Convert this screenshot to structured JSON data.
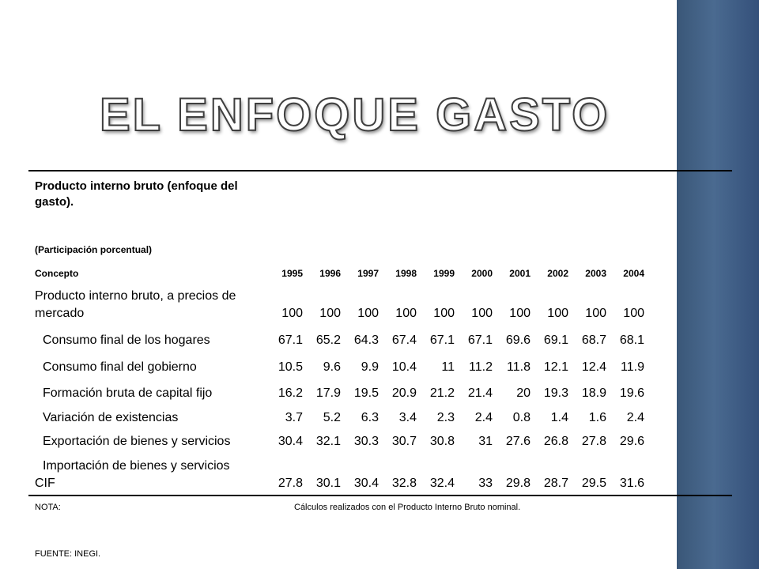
{
  "title": "El enfoque gasto",
  "table": {
    "heading": "Producto interno bruto (enfoque del gasto).",
    "heading_line1": "Producto interno bruto (enfoque del",
    "heading_line2": "gasto).",
    "subheading": "(Participación porcentual)",
    "concept_label": "Concepto",
    "years": [
      "1995",
      "1996",
      "1997",
      "1998",
      "1999",
      "2000",
      "2001",
      "2002",
      "2003",
      "2004"
    ],
    "rows": [
      {
        "label_line1": "Producto interno bruto, a precios de",
        "label_line2": "mercado",
        "values": [
          "100",
          "100",
          "100",
          "100",
          "100",
          "100",
          "100",
          "100",
          "100",
          "100"
        ]
      },
      {
        "label": "Consumo final de los hogares",
        "values": [
          "67.1",
          "65.2",
          "64.3",
          "67.4",
          "67.1",
          "67.1",
          "69.6",
          "69.1",
          "68.7",
          "68.1"
        ]
      },
      {
        "label": "Consumo final del gobierno",
        "values": [
          "10.5",
          "9.6",
          "9.9",
          "10.4",
          "11",
          "11.2",
          "11.8",
          "12.1",
          "12.4",
          "11.9"
        ]
      },
      {
        "label": "Formación bruta de capital fijo",
        "values": [
          "16.2",
          "17.9",
          "19.5",
          "20.9",
          "21.2",
          "21.4",
          "20",
          "19.3",
          "18.9",
          "19.6"
        ]
      },
      {
        "label": "Variación de existencias",
        "values": [
          "3.7",
          "5.2",
          "6.3",
          "3.4",
          "2.3",
          "2.4",
          "0.8",
          "1.4",
          "1.6",
          "2.4"
        ]
      },
      {
        "label": "Exportación de bienes y servicios",
        "values": [
          "30.4",
          "32.1",
          "30.3",
          "30.7",
          "30.8",
          "31",
          "27.6",
          "26.8",
          "27.8",
          "29.6"
        ]
      },
      {
        "label_line1": "Importación de bienes y servicios",
        "label_line2": "CIF",
        "values": [
          "27.8",
          "30.1",
          "30.4",
          "32.8",
          "32.4",
          "33",
          "29.8",
          "28.7",
          "29.5",
          "31.6"
        ]
      }
    ]
  },
  "notes": {
    "nota_label": "NOTA:",
    "nota_text": "Cálculos realizados con el Producto Interno Bruto nominal.",
    "fuente": "FUENTE: INEGI."
  },
  "colors": {
    "side_bar": "#4a6a90",
    "title_fill": "#ffffff",
    "title_stroke": "#3e3e3e"
  }
}
